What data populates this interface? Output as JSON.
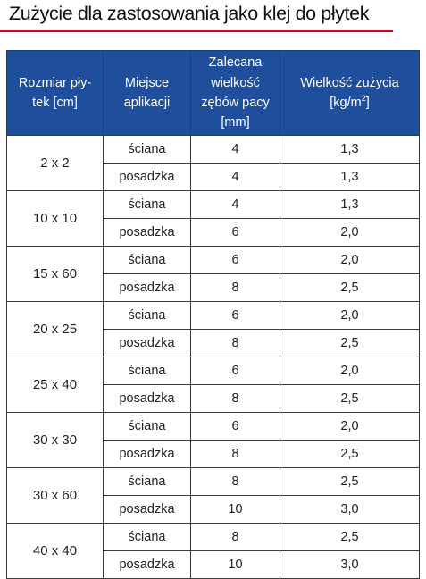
{
  "title": "Zużycie dla zastosowania jako klej do płytek",
  "colors": {
    "header_bg": "#1f4e9c",
    "title_rule": "#e2001a"
  },
  "headers": {
    "size": "Rozmiar pły-tek [cm]",
    "place": "Miejsce aplikacji",
    "trowel": "Zalecana wielkość zębów pacy [mm]",
    "usage_prefix": "Wielkość zużycia",
    "usage_unit_open": "[kg/m",
    "usage_unit_sup": "2",
    "usage_unit_close": "]"
  },
  "groups": [
    {
      "size": "2 x 2",
      "rows": [
        {
          "place": "ściana",
          "trowel": "4",
          "usage": "1,3"
        },
        {
          "place": "posadzka",
          "trowel": "4",
          "usage": "1,3"
        }
      ]
    },
    {
      "size": "10 x 10",
      "rows": [
        {
          "place": "ściana",
          "trowel": "4",
          "usage": "1,3"
        },
        {
          "place": "posadzka",
          "trowel": "6",
          "usage": "2,0"
        }
      ]
    },
    {
      "size": "15 x 60",
      "rows": [
        {
          "place": "ściana",
          "trowel": "6",
          "usage": "2,0"
        },
        {
          "place": "posadzka",
          "trowel": "8",
          "usage": "2,5"
        }
      ]
    },
    {
      "size": "20 x 25",
      "rows": [
        {
          "place": "ściana",
          "trowel": "6",
          "usage": "2,0"
        },
        {
          "place": "posadzka",
          "trowel": "8",
          "usage": "2,5"
        }
      ]
    },
    {
      "size": "25 x 40",
      "rows": [
        {
          "place": "ściana",
          "trowel": "6",
          "usage": "2,0"
        },
        {
          "place": "posadzka",
          "trowel": "8",
          "usage": "2,5"
        }
      ]
    },
    {
      "size": "30 x 30",
      "rows": [
        {
          "place": "ściana",
          "trowel": "6",
          "usage": "2,0"
        },
        {
          "place": "posadzka",
          "trowel": "8",
          "usage": "2,5"
        }
      ]
    },
    {
      "size": "30 x 60",
      "rows": [
        {
          "place": "ściana",
          "trowel": "8",
          "usage": "2,5"
        },
        {
          "place": "posadzka",
          "trowel": "10",
          "usage": "3,0"
        }
      ]
    },
    {
      "size": "40 x 40",
      "rows": [
        {
          "place": "ściana",
          "trowel": "8",
          "usage": "2,5"
        },
        {
          "place": "posadzka",
          "trowel": "10",
          "usage": "3,0"
        }
      ]
    }
  ]
}
